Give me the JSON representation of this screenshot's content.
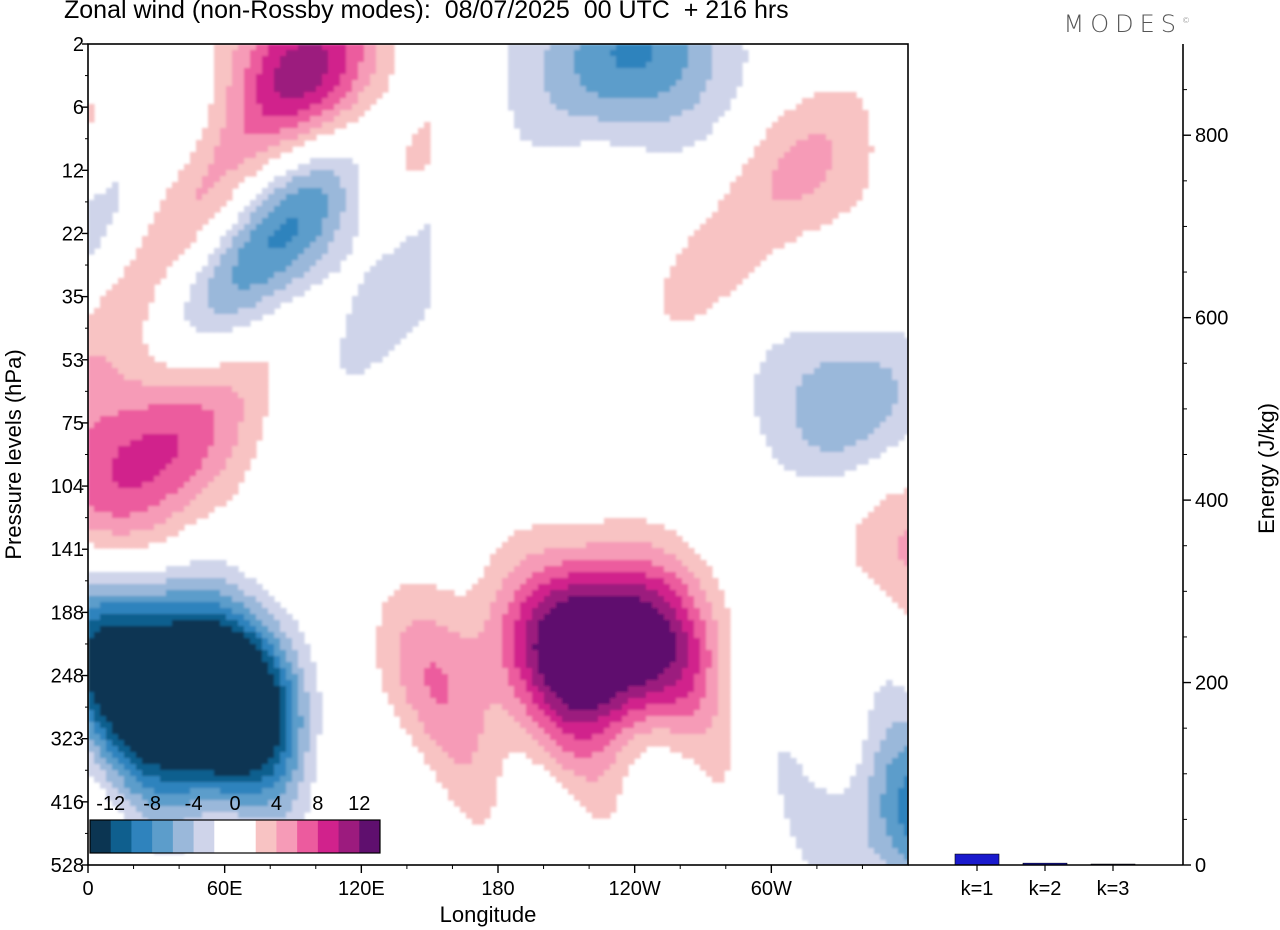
{
  "header": {
    "title": "Zonal wind (non-Rossby modes):  08/07/2025  00 UTC  + 216 hrs",
    "brand": "MODES",
    "brand_mark": "©"
  },
  "chart_data": [
    {
      "type": "heatmap",
      "title": "Zonal wind (non-Rossby modes):  08/07/2025  00 UTC  + 216 hrs",
      "xlabel": "Longitude",
      "ylabel": "Pressure levels (hPa)",
      "x_ticks": [
        "0",
        "60E",
        "120E",
        "180",
        "120W",
        "60W"
      ],
      "y_ticks": [
        "2",
        "6",
        "12",
        "22",
        "35",
        "53",
        "75",
        "104",
        "141",
        "188",
        "248",
        "323",
        "416",
        "528"
      ],
      "colorbar": {
        "tick_labels": [
          "-12",
          "-8",
          "-4",
          "0",
          "4",
          "8",
          "12"
        ],
        "levels": [
          -14,
          -12,
          -10,
          -8,
          -6,
          -4,
          -2,
          0,
          2,
          4,
          6,
          8,
          10,
          12,
          14
        ],
        "colors": [
          "#0b3552",
          "#0f5f8e",
          "#2f83bd",
          "#5c9dcb",
          "#9ab8da",
          "#cfd4ea",
          "#ffffff",
          "#ffffff",
          "#f8c3c3",
          "#f69bb7",
          "#ec5b9e",
          "#d1228c",
          "#9c1b7e",
          "#5f0f6e"
        ]
      },
      "features": [
        {
          "lon": 57,
          "level": 10.7,
          "value": -14
        },
        {
          "lon": 50,
          "level": 10.2,
          "value": -10
        },
        {
          "lon": 10,
          "level": 9.7,
          "value": -10
        },
        {
          "lon": 60,
          "level": 3.3,
          "value": -6
        },
        {
          "lon": 100,
          "level": 2.9,
          "value": -6
        },
        {
          "lon": 195,
          "level": 0.3,
          "value": -2
        },
        {
          "lon": 245,
          "level": 0.2,
          "value": -8
        },
        {
          "lon": 330,
          "level": 5.7,
          "value": -6
        },
        {
          "lon": 365,
          "level": 12.2,
          "value": -8
        },
        {
          "lon": 55,
          "level": 2.8,
          "value": 6
        },
        {
          "lon": 95,
          "level": 0.4,
          "value": 10
        },
        {
          "lon": 35,
          "level": 6.0,
          "value": 6
        },
        {
          "lon": 5,
          "level": 7.0,
          "value": 6
        },
        {
          "lon": 205,
          "level": 9.3,
          "value": 4
        },
        {
          "lon": 228,
          "level": 9.6,
          "value": 10
        },
        {
          "lon": 240,
          "level": 9.5,
          "value": 6
        },
        {
          "lon": 190,
          "level": 11.0,
          "value": 2
        },
        {
          "lon": 140,
          "level": 10.0,
          "value": 4
        },
        {
          "lon": 270,
          "level": 3.6,
          "value": 2
        },
        {
          "lon": 320,
          "level": 2.0,
          "value": 4
        },
        {
          "lon": 360,
          "level": 7.8,
          "value": 4
        }
      ]
    },
    {
      "type": "bar",
      "categories": [
        "k=1",
        "k=2",
        "k=3"
      ],
      "values": [
        12,
        2,
        1
      ],
      "ylabel": "Energy (J/kg)",
      "ylim": [
        0,
        900
      ],
      "y_ticks": [
        0,
        200,
        400,
        600,
        800
      ],
      "bar_color": "#1a1acd"
    }
  ]
}
